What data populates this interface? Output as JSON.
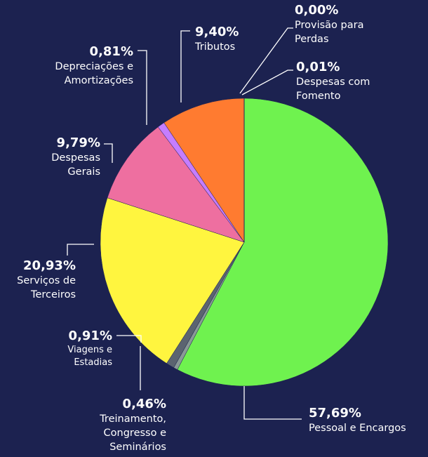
{
  "chart_data": {
    "type": "pie",
    "categories": [
      "Pessoal e Encargos",
      "Treinamento, Congresso e Seminários",
      "Viagens e Estadias",
      "Serviços de Terceiros",
      "Despesas Gerais",
      "Depreciações e Amortizações",
      "Tributos",
      "Despesas com Fomento",
      "Provisão para Perdas"
    ],
    "values": [
      57.69,
      0.46,
      0.91,
      20.93,
      9.79,
      0.81,
      9.4,
      0.01,
      0.0
    ],
    "value_labels": [
      "57,69%",
      "0,46%",
      "0,91%",
      "20,93%",
      "9,79%",
      "0,81%",
      "9,40%",
      "0,01%",
      "0,00%"
    ],
    "colors": [
      "#6ff24f",
      "#8a9a96",
      "#5b6470",
      "#fff53f",
      "#ee6fa0",
      "#c57dff",
      "#ff7b30",
      "#4fd6e6",
      "#b0b0b0"
    ]
  }
}
